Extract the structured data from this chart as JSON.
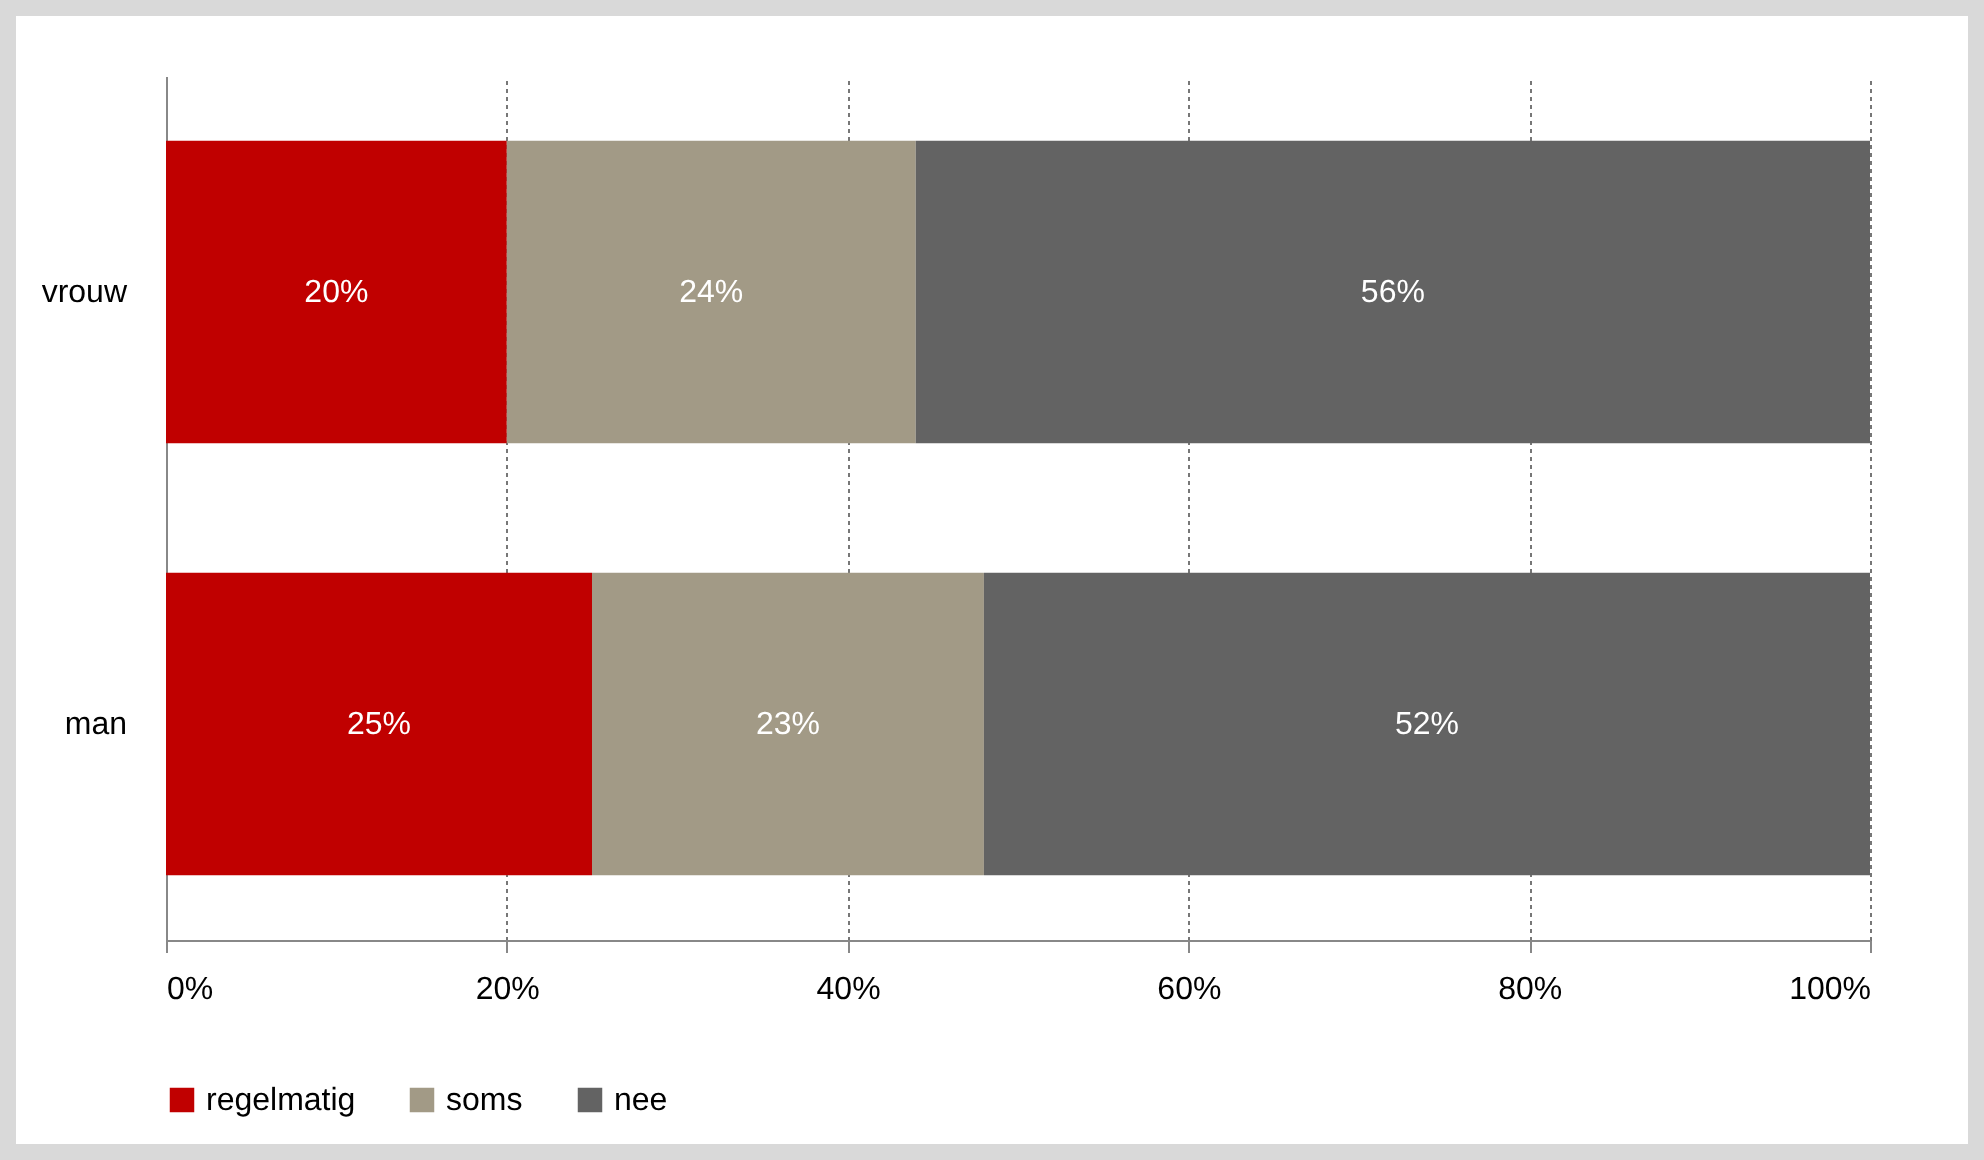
{
  "chart_data": {
    "type": "bar",
    "orientation": "horizontal",
    "stacked": true,
    "categories": [
      "vrouw",
      "man"
    ],
    "series": [
      {
        "name": "regelmatig",
        "color": "#c00000",
        "values": [
          20,
          25
        ],
        "value_labels": [
          "20%",
          "25%"
        ]
      },
      {
        "name": "soms",
        "color": "#a29a86",
        "values": [
          24,
          23
        ],
        "value_labels": [
          "24%",
          "23%"
        ]
      },
      {
        "name": "nee",
        "color": "#636363",
        "values": [
          56,
          52
        ],
        "value_labels": [
          "56%",
          "52%"
        ]
      }
    ],
    "xlim": [
      0,
      100
    ],
    "xticks": [
      {
        "value": 0,
        "label": "0%"
      },
      {
        "value": 20,
        "label": "20%"
      },
      {
        "value": 40,
        "label": "40%"
      },
      {
        "value": 60,
        "label": "60%"
      },
      {
        "value": 80,
        "label": "80%"
      },
      {
        "value": 100,
        "label": "100%"
      }
    ],
    "grid": "x",
    "legend": "bottom"
  }
}
